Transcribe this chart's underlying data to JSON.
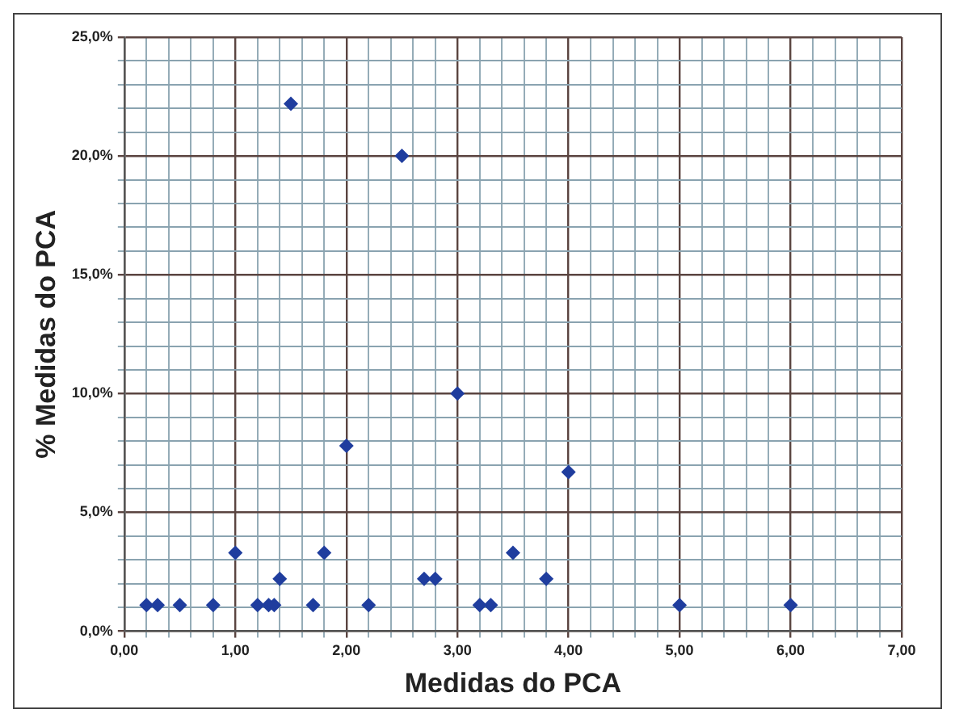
{
  "chart_data": {
    "type": "scatter",
    "xlabel": "Medidas do PCA",
    "ylabel": "% Medidas do PCA",
    "x": [
      0.2,
      0.3,
      0.5,
      0.8,
      1.0,
      1.2,
      1.3,
      1.35,
      1.4,
      1.5,
      1.7,
      1.8,
      2.0,
      2.2,
      2.5,
      2.7,
      2.8,
      3.0,
      3.2,
      3.3,
      3.5,
      3.8,
      4.0,
      5.0,
      6.0
    ],
    "values": [
      1.1,
      1.1,
      1.1,
      1.1,
      3.3,
      1.1,
      1.1,
      1.1,
      2.2,
      22.2,
      1.1,
      3.3,
      7.8,
      1.1,
      20.0,
      2.2,
      2.2,
      10.0,
      1.1,
      1.1,
      3.3,
      2.2,
      6.7,
      1.1,
      1.1
    ],
    "color": "#1f3d9e",
    "marker": "diamond",
    "grid": true,
    "legend": false,
    "xlim": [
      0,
      7
    ],
    "ylim": [
      0,
      25
    ],
    "xticks": [
      {
        "value": 0,
        "label": "0,00"
      },
      {
        "value": 0.2,
        "label": null
      },
      {
        "value": 0.4,
        "label": null
      },
      {
        "value": 0.6,
        "label": null
      },
      {
        "value": 0.8,
        "label": null
      },
      {
        "value": 1,
        "label": "1,00"
      },
      {
        "value": 1.2,
        "label": null
      },
      {
        "value": 1.4,
        "label": null
      },
      {
        "value": 1.6,
        "label": null
      },
      {
        "value": 1.8,
        "label": null
      },
      {
        "value": 2,
        "label": "2,00"
      },
      {
        "value": 2.2,
        "label": null
      },
      {
        "value": 2.4,
        "label": null
      },
      {
        "value": 2.6,
        "label": null
      },
      {
        "value": 2.8,
        "label": null
      },
      {
        "value": 3,
        "label": "3,00"
      },
      {
        "value": 3.2,
        "label": null
      },
      {
        "value": 3.4,
        "label": null
      },
      {
        "value": 3.6,
        "label": null
      },
      {
        "value": 3.8,
        "label": null
      },
      {
        "value": 4,
        "label": "4,00"
      },
      {
        "value": 4.2,
        "label": null
      },
      {
        "value": 4.4,
        "label": null
      },
      {
        "value": 4.6,
        "label": null
      },
      {
        "value": 4.8,
        "label": null
      },
      {
        "value": 5,
        "label": "5,00"
      },
      {
        "value": 5.2,
        "label": null
      },
      {
        "value": 5.4,
        "label": null
      },
      {
        "value": 5.6,
        "label": null
      },
      {
        "value": 5.8,
        "label": null
      },
      {
        "value": 6,
        "label": "6,00"
      },
      {
        "value": 6.2,
        "label": null
      },
      {
        "value": 6.4,
        "label": null
      },
      {
        "value": 6.6,
        "label": null
      },
      {
        "value": 6.8,
        "label": null
      },
      {
        "value": 7,
        "label": "7,00"
      }
    ],
    "yticks": [
      {
        "value": 0,
        "label": "0,0%"
      },
      {
        "value": 1,
        "label": null
      },
      {
        "value": 2,
        "label": null
      },
      {
        "value": 3,
        "label": null
      },
      {
        "value": 4,
        "label": null
      },
      {
        "value": 5,
        "label": "5,0%"
      },
      {
        "value": 6,
        "label": null
      },
      {
        "value": 7,
        "label": null
      },
      {
        "value": 8,
        "label": null
      },
      {
        "value": 9,
        "label": null
      },
      {
        "value": 10,
        "label": "10,0%"
      },
      {
        "value": 11,
        "label": null
      },
      {
        "value": 12,
        "label": null
      },
      {
        "value": 13,
        "label": null
      },
      {
        "value": 14,
        "label": null
      },
      {
        "value": 15,
        "label": "15,0%"
      },
      {
        "value": 16,
        "label": null
      },
      {
        "value": 17,
        "label": null
      },
      {
        "value": 18,
        "label": null
      },
      {
        "value": 19,
        "label": null
      },
      {
        "value": 20,
        "label": "20,0%"
      },
      {
        "value": 21,
        "label": null
      },
      {
        "value": 22,
        "label": null
      },
      {
        "value": 23,
        "label": null
      },
      {
        "value": 24,
        "label": null
      },
      {
        "value": 25,
        "label": "25,0%"
      }
    ]
  }
}
